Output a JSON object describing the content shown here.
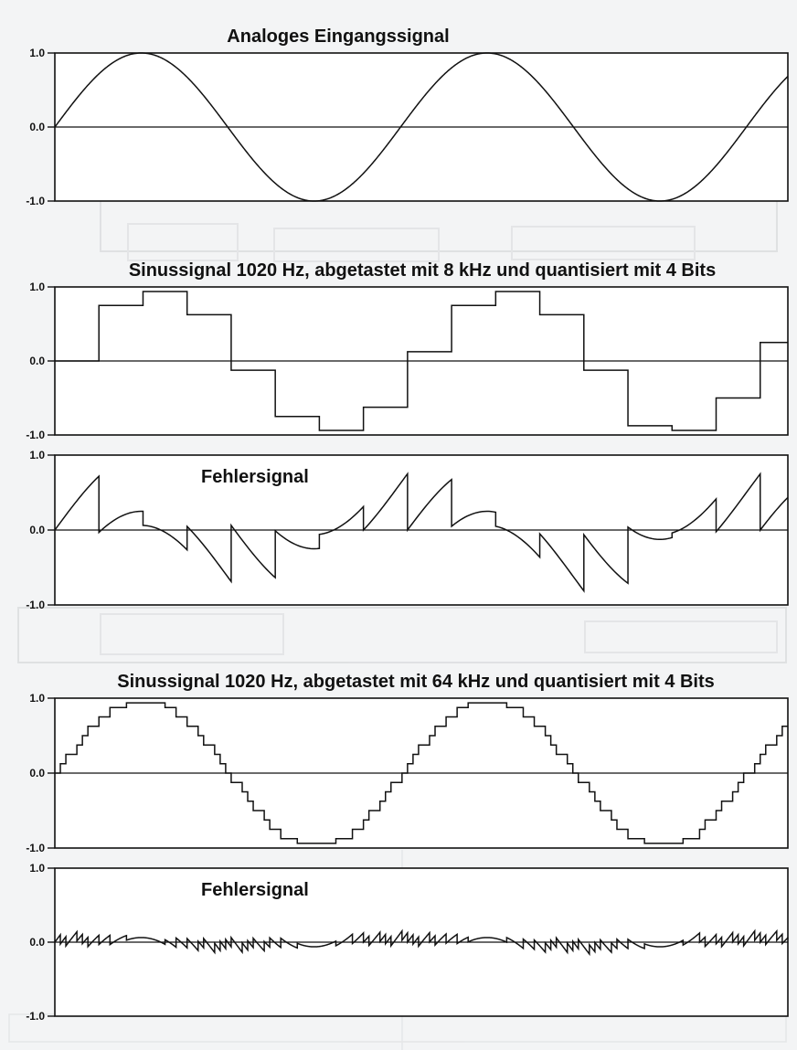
{
  "chart_data": [
    {
      "type": "line",
      "title": "Analoges Eingangssignal",
      "signal": "analog",
      "y_ticks": [
        "1.0",
        "0.0",
        "-1.0"
      ],
      "ylim": [
        -1,
        1
      ],
      "cycles": 2.12,
      "phase_deg": 0
    },
    {
      "type": "line",
      "title": "Sinussignal 1020 Hz, abgetastet mit 8 kHz und quantisiert mit 4 Bits",
      "signal": "quantized",
      "y_ticks": [
        "1.0",
        "0.0",
        "-1.0"
      ],
      "ylim": [
        -1,
        1
      ],
      "signal_frequency_hz": 1020,
      "sample_rate_hz": 8000,
      "bits": 4,
      "cycles": 2.12
    },
    {
      "type": "line",
      "title": "Fehlersignal",
      "signal": "error",
      "y_ticks": [
        "1.0",
        "0.0",
        "-1.0"
      ],
      "ylim": [
        -1,
        1
      ],
      "signal_frequency_hz": 1020,
      "sample_rate_hz": 8000,
      "bits": 4,
      "cycles": 2.12
    },
    {
      "type": "line",
      "title": "Sinussignal 1020 Hz, abgetastet mit 64 kHz und quantisiert mit 4 Bits",
      "signal": "quantized",
      "y_ticks": [
        "1.0",
        "0.0",
        "-1.0"
      ],
      "ylim": [
        -1,
        1
      ],
      "signal_frequency_hz": 1020,
      "sample_rate_hz": 64000,
      "bits": 4,
      "cycles": 2.12
    },
    {
      "type": "line",
      "title": "Fehlersignal",
      "signal": "error",
      "y_ticks": [
        "1.0",
        "0.0",
        "-1.0"
      ],
      "ylim": [
        -1,
        1
      ],
      "signal_frequency_hz": 1020,
      "sample_rate_hz": 64000,
      "bits": 4,
      "cycles": 2.12
    }
  ]
}
